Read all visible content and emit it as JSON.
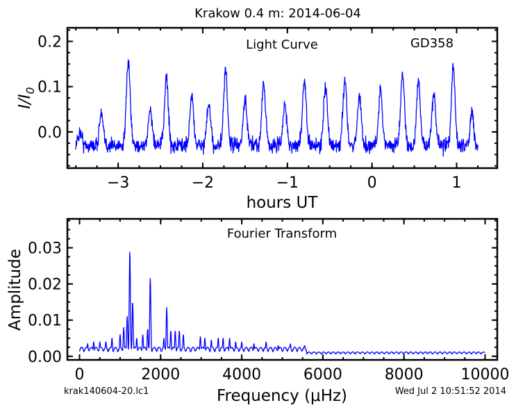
{
  "page": {
    "title": "Krakow 0.4 m:  2014-06-04",
    "footer_left": "krak140604-20.lc1",
    "footer_right": "Wed Jul  2 10:51:52 2014"
  },
  "chart_data": [
    {
      "type": "line",
      "annotation": "Light Curve",
      "object_label": "GD358",
      "xlabel": "hours UT",
      "ylabel_main": "I/I",
      "ylabel_sub": "0",
      "xlim": [
        -3.6,
        1.48
      ],
      "ylim": [
        -0.08,
        0.23
      ],
      "xticks": [
        -3,
        -2,
        -1,
        0,
        1
      ],
      "xtick_labels": [
        "−3",
        "−2",
        "−1",
        "0",
        "1"
      ],
      "yticks": [
        0.0,
        0.1,
        0.2
      ],
      "ytick_labels": [
        "0.0",
        "0.1",
        "0.2"
      ],
      "color": "#0000ff",
      "x_range": [
        -3.5,
        1.25
      ],
      "baseline": -0.03,
      "pulse_peaks": [
        [
          -3.45,
          0.0
        ],
        [
          -3.2,
          0.04
        ],
        [
          -2.88,
          0.155
        ],
        [
          -2.62,
          0.05
        ],
        [
          -2.43,
          0.12
        ],
        [
          -2.13,
          0.08
        ],
        [
          -1.93,
          0.06
        ],
        [
          -1.73,
          0.135
        ],
        [
          -1.5,
          0.07
        ],
        [
          -1.28,
          0.11
        ],
        [
          -1.03,
          0.06
        ],
        [
          -0.8,
          0.115
        ],
        [
          -0.55,
          0.1
        ],
        [
          -0.32,
          0.115
        ],
        [
          -0.15,
          0.08
        ],
        [
          0.1,
          0.095
        ],
        [
          0.36,
          0.13
        ],
        [
          0.55,
          0.11
        ],
        [
          0.73,
          0.085
        ],
        [
          0.96,
          0.14
        ],
        [
          1.18,
          0.04
        ]
      ]
    },
    {
      "type": "line",
      "annotation": "Fourier Transform",
      "xlabel": "Frequency (μHz)",
      "ylabel": "Amplitude",
      "xlim": [
        -300,
        10300
      ],
      "ylim": [
        -0.001,
        0.038
      ],
      "xticks": [
        0,
        2000,
        4000,
        6000,
        8000,
        10000
      ],
      "xtick_labels": [
        "0",
        "2000",
        "4000",
        "6000",
        "8000",
        "10000"
      ],
      "yticks": [
        0.0,
        0.01,
        0.02,
        0.03
      ],
      "ytick_labels": [
        "0.00",
        "0.01",
        "0.02",
        "0.03"
      ],
      "color": "#0000ff",
      "x_range": [
        0,
        10000
      ],
      "peaks": [
        [
          1240,
          0.029
        ],
        [
          1310,
          0.015
        ],
        [
          1175,
          0.011
        ],
        [
          1090,
          0.008
        ],
        [
          1000,
          0.006
        ],
        [
          1745,
          0.0215
        ],
        [
          1680,
          0.0075
        ],
        [
          1560,
          0.006
        ],
        [
          1410,
          0.005
        ],
        [
          2150,
          0.0135
        ],
        [
          2080,
          0.005
        ],
        [
          2250,
          0.007
        ],
        [
          2360,
          0.007
        ],
        [
          2460,
          0.007
        ],
        [
          2560,
          0.006
        ],
        [
          2980,
          0.0055
        ],
        [
          3090,
          0.005
        ],
        [
          3250,
          0.0045
        ],
        [
          3420,
          0.005
        ],
        [
          3540,
          0.005
        ],
        [
          3700,
          0.005
        ],
        [
          3850,
          0.004
        ],
        [
          4000,
          0.004
        ],
        [
          4300,
          0.0035
        ],
        [
          4600,
          0.004
        ],
        [
          4900,
          0.003
        ],
        [
          5200,
          0.0035
        ],
        [
          5550,
          0.003
        ],
        [
          350,
          0.004
        ],
        [
          500,
          0.004
        ],
        [
          650,
          0.004
        ],
        [
          800,
          0.005
        ],
        [
          200,
          0.0035
        ]
      ]
    }
  ]
}
